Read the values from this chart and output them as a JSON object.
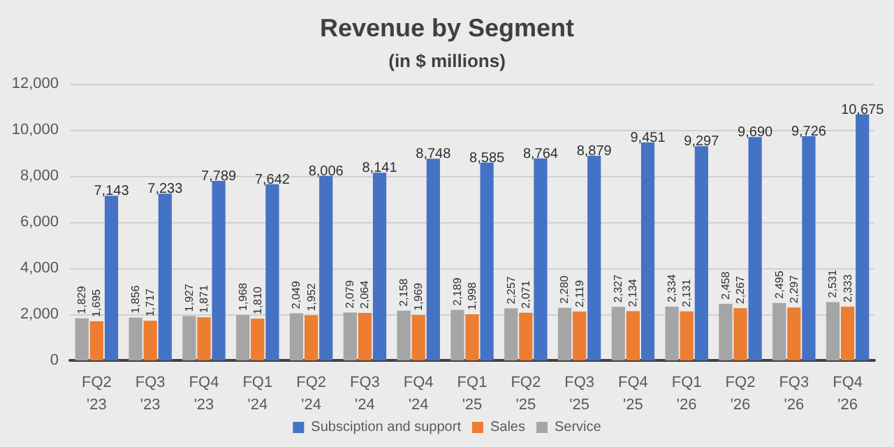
{
  "chart_data": {
    "type": "bar",
    "title": "Revenue by Segment",
    "subtitle": "(in $ millions)",
    "categories": [
      "FQ2 '23",
      "FQ3 '23",
      "FQ4 '23",
      "FQ1 '24",
      "FQ2 '24",
      "FQ3 '24",
      "FQ4 '24",
      "FQ1 '25",
      "FQ2 '25",
      "FQ3 '25",
      "FQ4 '25",
      "FQ1 '26",
      "FQ2 '26",
      "FQ3 '26",
      "FQ4 '26"
    ],
    "series": [
      {
        "name": "Service",
        "color": "#a5a5a5",
        "values": [
          1829,
          1856,
          1927,
          1968,
          2049,
          2079,
          2158,
          2189,
          2257,
          2280,
          2327,
          2334,
          2458,
          2495,
          2531
        ],
        "value_labels": [
          "1,829",
          "1,856",
          "1,927",
          "1,968",
          "2,049",
          "2,079",
          "2,158",
          "2,189",
          "2,257",
          "2,280",
          "2,327",
          "2,334",
          "2,458",
          "2,495",
          "2,531"
        ]
      },
      {
        "name": "Sales",
        "color": "#ed7d31",
        "values": [
          1695,
          1717,
          1871,
          1810,
          1952,
          2064,
          1969,
          1998,
          2071,
          2119,
          2134,
          2131,
          2267,
          2297,
          2333
        ],
        "value_labels": [
          "1,695",
          "1,717",
          "1,871",
          "1,810",
          "1,952",
          "2,064",
          "1,969",
          "1,998",
          "2,071",
          "2,119",
          "2,134",
          "2,131",
          "2,267",
          "2,297",
          "2,333"
        ]
      },
      {
        "name": "Subsciption and support",
        "color": "#4472c4",
        "values": [
          7143,
          7233,
          7789,
          7642,
          8006,
          8141,
          8748,
          8585,
          8764,
          8879,
          9451,
          9297,
          9690,
          9726,
          10675
        ],
        "value_labels": [
          "7,143",
          "7,233",
          "7,789",
          "7,642",
          "8,006",
          "8,141",
          "8,748",
          "8,585",
          "8,764",
          "8,879",
          "9,451",
          "9,297",
          "9,690",
          "9,726",
          "10,675"
        ]
      }
    ],
    "ylim": [
      0,
      12000
    ],
    "yticks": [
      0,
      {
        "value": 2000,
        "label": "2,000"
      },
      {
        "value": 4000,
        "label": "4,000"
      },
      {
        "value": 6000,
        "label": "6,000"
      },
      {
        "value": 8000,
        "label": "8,000"
      },
      {
        "value": 10000,
        "label": "10,000"
      },
      {
        "value": 12000,
        "label": "12,000"
      }
    ],
    "grid": "y",
    "legend": "bottom"
  }
}
